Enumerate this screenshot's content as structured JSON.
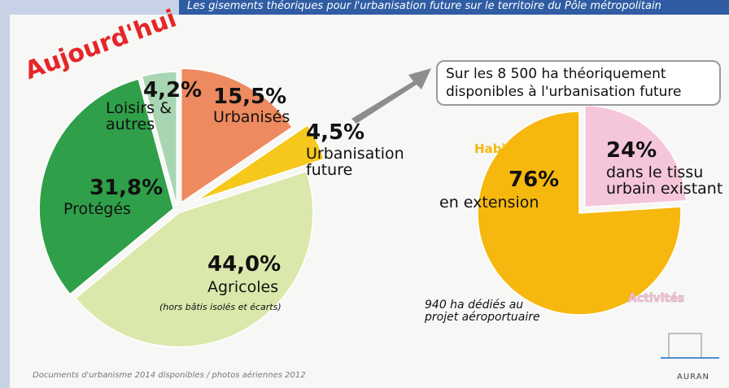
{
  "banner": "Les gisements théoriques pour l'urbanisation future sur le territoire du Pôle métropolitain",
  "source": "Documents d'urbanisme 2014 disponibles / photos aériennes 2012",
  "logo": "AURAN",
  "chart_data": [
    {
      "type": "pie",
      "title": "Aujourd'hui",
      "categories": [
        "Urbanisés",
        "Urbanisation future",
        "Agricoles",
        "Protégés",
        "Loisirs & autres"
      ],
      "values": [
        15.5,
        4.5,
        44.0,
        31.8,
        4.2
      ],
      "value_labels": [
        "15,5%",
        "4,5%",
        "44,0%",
        "31,8%",
        "4,2%"
      ],
      "colors": [
        "#ee8a5f",
        "#f6c81c",
        "#dbe8ab",
        "#2f9f49",
        "#a9d6b2"
      ],
      "annotations": [
        "(hors bâtis isolés et écarts)"
      ]
    },
    {
      "type": "pie",
      "title": "Sur les 8 500 ha théoriquement disponibles à l'urbanisation future",
      "categories": [
        "dans le tissu urbain existant",
        "en extension"
      ],
      "values": [
        24,
        76
      ],
      "value_labels": [
        "24%",
        "76%"
      ],
      "colors": [
        "#f5c6da",
        "#f6b80e"
      ],
      "annotations": [
        "Habitat",
        "Activités",
        "940 ha dédiés au projet aéroportuaire"
      ]
    }
  ]
}
